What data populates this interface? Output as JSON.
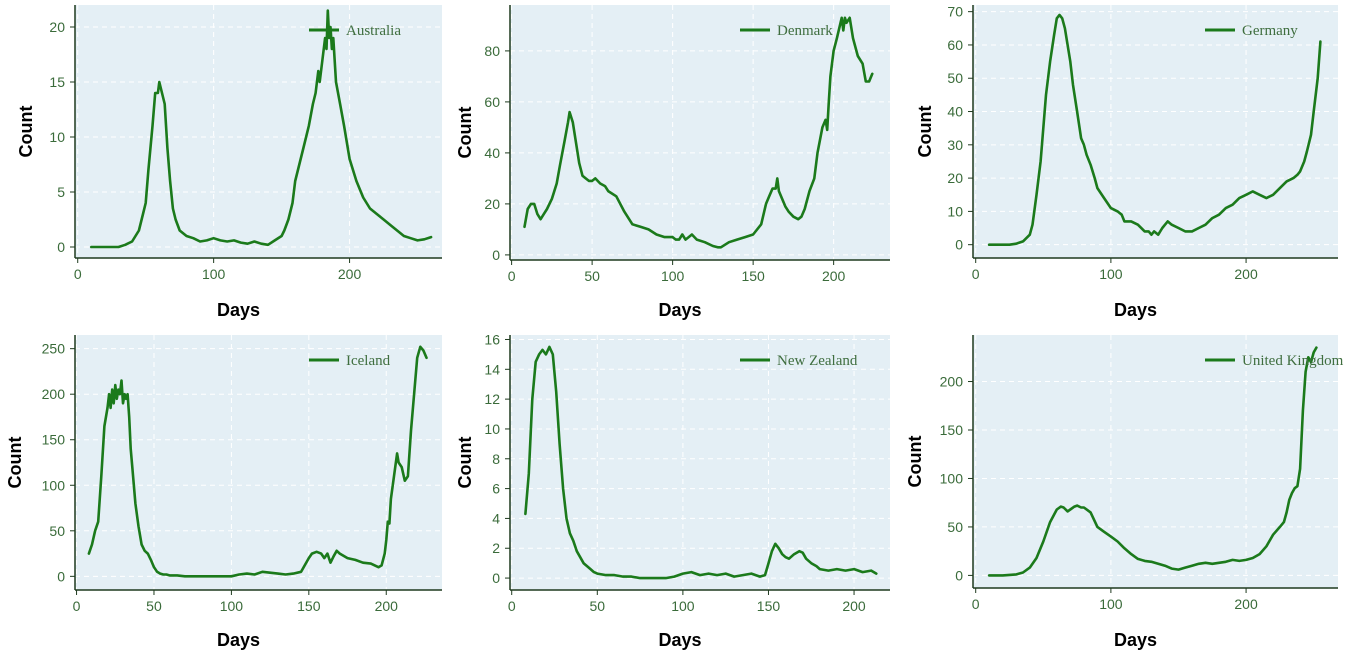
{
  "chart_data": [
    {
      "type": "line",
      "series": [
        {
          "name": "Australia"
        }
      ],
      "xlabel": "Days",
      "ylabel": "Count",
      "xticks": [
        0,
        100,
        200
      ],
      "yticks": [
        0,
        5,
        10,
        15,
        20
      ],
      "xlim": [
        -2,
        268
      ],
      "ylim": [
        -1,
        22
      ],
      "grid": true,
      "legend": "top-right",
      "color": "#1b7a1b",
      "x": [
        10,
        20,
        30,
        35,
        40,
        45,
        48,
        50,
        52,
        55,
        57,
        59,
        60,
        62,
        64,
        66,
        68,
        70,
        72,
        75,
        80,
        85,
        90,
        95,
        100,
        105,
        110,
        115,
        120,
        125,
        130,
        135,
        140,
        145,
        150,
        152,
        155,
        158,
        160,
        163,
        166,
        170,
        173,
        175,
        177,
        178,
        180,
        182,
        183,
        184,
        185,
        186,
        187,
        188,
        190,
        193,
        196,
        200,
        205,
        210,
        215,
        220,
        225,
        230,
        235,
        240,
        245,
        250,
        255,
        260
      ],
      "y": [
        0,
        0,
        0,
        0.2,
        0.5,
        1.5,
        3,
        4,
        7,
        11,
        14,
        14,
        15,
        14,
        13,
        9,
        6,
        3.5,
        2.5,
        1.5,
        1,
        0.8,
        0.5,
        0.6,
        0.8,
        0.6,
        0.5,
        0.6,
        0.4,
        0.3,
        0.5,
        0.3,
        0.2,
        0.6,
        1,
        1.5,
        2.5,
        4,
        6,
        7.5,
        9,
        11,
        13,
        14,
        16,
        15,
        17,
        19,
        18,
        21.5,
        19,
        20,
        18,
        19,
        15,
        13,
        11,
        8,
        6,
        4.5,
        3.5,
        3,
        2.5,
        2,
        1.5,
        1,
        0.8,
        0.6,
        0.7,
        0.9
      ]
    },
    {
      "type": "line",
      "series": [
        {
          "name": "Denmark"
        }
      ],
      "xlabel": "Days",
      "ylabel": "Count",
      "xticks": [
        0,
        50,
        100,
        150,
        200
      ],
      "yticks": [
        0,
        20,
        40,
        60,
        80
      ],
      "xlim": [
        -1,
        235
      ],
      "ylim": [
        -2,
        98
      ],
      "grid": true,
      "legend": "top-right",
      "color": "#1b7a1b",
      "x": [
        8,
        10,
        12,
        14,
        16,
        18,
        20,
        22,
        25,
        28,
        30,
        33,
        35,
        36,
        38,
        40,
        42,
        44,
        46,
        48,
        50,
        52,
        55,
        58,
        60,
        65,
        70,
        75,
        80,
        85,
        90,
        95,
        100,
        102,
        104,
        106,
        108,
        110,
        112,
        115,
        120,
        125,
        128,
        130,
        135,
        140,
        145,
        150,
        155,
        158,
        160,
        162,
        164,
        165,
        166,
        168,
        170,
        172,
        175,
        178,
        180,
        182,
        185,
        188,
        190,
        193,
        195,
        196,
        197,
        198,
        200,
        202,
        205,
        206,
        207,
        208,
        210,
        212,
        215,
        218,
        220,
        222,
        224
      ],
      "y": [
        11,
        18,
        20,
        20,
        16,
        14,
        16,
        18,
        22,
        28,
        35,
        45,
        52,
        56,
        52,
        44,
        36,
        31,
        30,
        29,
        29,
        30,
        28,
        27,
        25,
        23,
        17,
        12,
        11,
        10,
        8,
        7,
        7,
        6,
        6,
        8,
        6,
        7,
        8,
        6,
        5,
        3.5,
        3,
        3,
        5,
        6,
        7,
        8,
        12,
        20,
        23,
        26,
        26,
        30,
        25,
        22,
        19,
        17,
        15,
        14,
        15,
        18,
        25,
        30,
        40,
        50,
        53,
        49,
        60,
        70,
        80,
        85,
        93,
        88,
        93,
        91,
        93,
        85,
        78,
        75,
        68,
        68,
        71
      ]
    },
    {
      "type": "line",
      "series": [
        {
          "name": "Germany"
        }
      ],
      "xlabel": "Days",
      "ylabel": "Count",
      "xticks": [
        0,
        100,
        200
      ],
      "yticks": [
        0,
        10,
        20,
        30,
        40,
        50,
        60,
        70
      ],
      "xlim": [
        -2,
        268
      ],
      "ylim": [
        -4,
        72
      ],
      "grid": true,
      "legend": "top-right",
      "color": "#1b7a1b",
      "x": [
        10,
        15,
        20,
        25,
        30,
        35,
        40,
        42,
        45,
        48,
        50,
        52,
        55,
        58,
        60,
        62,
        64,
        66,
        68,
        70,
        72,
        75,
        78,
        80,
        82,
        85,
        88,
        90,
        95,
        100,
        105,
        108,
        110,
        115,
        120,
        125,
        128,
        130,
        132,
        135,
        138,
        140,
        142,
        145,
        150,
        155,
        160,
        165,
        170,
        175,
        180,
        185,
        190,
        195,
        200,
        205,
        210,
        215,
        220,
        225,
        230,
        235,
        238,
        240,
        243,
        245,
        248,
        250,
        253,
        255
      ],
      "y": [
        0,
        0,
        0,
        0,
        0.3,
        1,
        3,
        6,
        15,
        25,
        35,
        45,
        55,
        63,
        68,
        69,
        68,
        65,
        60,
        55,
        48,
        40,
        32,
        30,
        27,
        24,
        20,
        17,
        14,
        11,
        10,
        9,
        7,
        7,
        6,
        4,
        4,
        3,
        4,
        3,
        5,
        6,
        7,
        6,
        5,
        4,
        4,
        5,
        6,
        8,
        9,
        11,
        12,
        14,
        15,
        16,
        15,
        14,
        15,
        17,
        19,
        20,
        21,
        22,
        25,
        28,
        33,
        40,
        50,
        61
      ]
    },
    {
      "type": "line",
      "series": [
        {
          "name": "Iceland"
        }
      ],
      "xlabel": "Days",
      "ylabel": "Count",
      "xticks": [
        0,
        50,
        100,
        150,
        200
      ],
      "yticks": [
        0,
        50,
        100,
        150,
        200,
        250
      ],
      "xlim": [
        -1,
        236
      ],
      "ylim": [
        -15,
        265
      ],
      "grid": true,
      "legend": "top-right",
      "color": "#1b7a1b",
      "x": [
        8,
        10,
        12,
        14,
        16,
        18,
        20,
        21,
        22,
        23,
        24,
        25,
        26,
        27,
        28,
        29,
        30,
        31,
        32,
        33,
        34,
        35,
        36,
        38,
        40,
        42,
        44,
        46,
        48,
        50,
        52,
        54,
        56,
        58,
        60,
        65,
        70,
        80,
        90,
        100,
        105,
        110,
        115,
        120,
        125,
        130,
        135,
        140,
        145,
        150,
        152,
        155,
        158,
        160,
        162,
        164,
        166,
        168,
        170,
        175,
        180,
        185,
        190,
        195,
        197,
        199,
        200,
        201,
        202,
        203,
        205,
        207,
        208,
        210,
        212,
        214,
        216,
        218,
        220,
        222,
        224,
        226
      ],
      "y": [
        25,
        35,
        50,
        60,
        110,
        165,
        185,
        200,
        185,
        205,
        190,
        210,
        195,
        205,
        200,
        215,
        190,
        200,
        195,
        200,
        175,
        140,
        120,
        80,
        55,
        35,
        28,
        25,
        18,
        10,
        5,
        3,
        2,
        2,
        1,
        1,
        0,
        0,
        0,
        0,
        2,
        3,
        2,
        5,
        4,
        3,
        2,
        3,
        5,
        20,
        25,
        27,
        25,
        20,
        25,
        15,
        22,
        28,
        25,
        20,
        18,
        15,
        14,
        10,
        12,
        25,
        40,
        60,
        58,
        85,
        110,
        135,
        125,
        120,
        105,
        110,
        160,
        200,
        240,
        252,
        248,
        240
      ]
    },
    {
      "type": "line",
      "series": [
        {
          "name": "New Zealand"
        }
      ],
      "xlabel": "Days",
      "ylabel": "Count",
      "xticks": [
        0,
        50,
        100,
        150,
        200
      ],
      "yticks": [
        0,
        2,
        4,
        6,
        8,
        10,
        12,
        14,
        16
      ],
      "xlim": [
        -1,
        221
      ],
      "ylim": [
        -0.8,
        16.3
      ],
      "grid": true,
      "legend": "top-right",
      "color": "#1b7a1b",
      "x": [
        8,
        10,
        12,
        14,
        16,
        18,
        20,
        22,
        24,
        26,
        28,
        30,
        32,
        34,
        36,
        38,
        40,
        42,
        44,
        46,
        48,
        50,
        55,
        60,
        65,
        70,
        75,
        80,
        85,
        90,
        95,
        100,
        105,
        110,
        115,
        120,
        125,
        130,
        135,
        140,
        145,
        148,
        150,
        152,
        154,
        156,
        158,
        160,
        162,
        165,
        168,
        170,
        172,
        175,
        178,
        180,
        185,
        190,
        195,
        200,
        205,
        210,
        213
      ],
      "y": [
        4.3,
        7,
        12,
        14.5,
        15,
        15.3,
        15,
        15.5,
        15,
        12.5,
        9,
        6,
        4,
        3,
        2.5,
        1.8,
        1.4,
        1,
        0.8,
        0.6,
        0.4,
        0.3,
        0.2,
        0.2,
        0.1,
        0.1,
        0,
        0,
        0,
        0,
        0.1,
        0.3,
        0.4,
        0.2,
        0.3,
        0.2,
        0.3,
        0.1,
        0.2,
        0.3,
        0.1,
        0.2,
        1,
        1.8,
        2.3,
        2,
        1.6,
        1.4,
        1.3,
        1.6,
        1.8,
        1.7,
        1.3,
        1,
        0.8,
        0.6,
        0.5,
        0.6,
        0.5,
        0.6,
        0.4,
        0.5,
        0.3
      ]
    },
    {
      "type": "line",
      "series": [
        {
          "name": "United Kingdom"
        }
      ],
      "xlabel": "Days",
      "ylabel": "Count",
      "xticks": [
        0,
        100,
        200
      ],
      "yticks": [
        0,
        50,
        100,
        150,
        200
      ],
      "xlim": [
        -2,
        268
      ],
      "ylim": [
        -13,
        248
      ],
      "grid": true,
      "legend": "top-right",
      "color": "#1b7a1b",
      "x": [
        10,
        20,
        30,
        35,
        40,
        45,
        50,
        55,
        60,
        63,
        65,
        68,
        70,
        73,
        75,
        78,
        80,
        85,
        90,
        95,
        100,
        105,
        110,
        115,
        120,
        125,
        130,
        135,
        140,
        145,
        150,
        155,
        160,
        165,
        170,
        175,
        180,
        185,
        190,
        195,
        200,
        205,
        210,
        215,
        220,
        225,
        228,
        230,
        232,
        234,
        236,
        238,
        240,
        242,
        244,
        246,
        248,
        250,
        252
      ],
      "y": [
        0,
        0,
        1,
        3,
        8,
        18,
        35,
        55,
        68,
        71,
        70,
        66,
        68,
        71,
        72,
        70,
        70,
        65,
        50,
        45,
        40,
        35,
        28,
        22,
        17,
        15,
        14,
        12,
        10,
        7,
        6,
        8,
        10,
        12,
        13,
        12,
        13,
        14,
        16,
        15,
        16,
        18,
        22,
        30,
        42,
        50,
        55,
        65,
        78,
        85,
        90,
        92,
        110,
        170,
        210,
        225,
        220,
        230,
        235
      ]
    }
  ]
}
